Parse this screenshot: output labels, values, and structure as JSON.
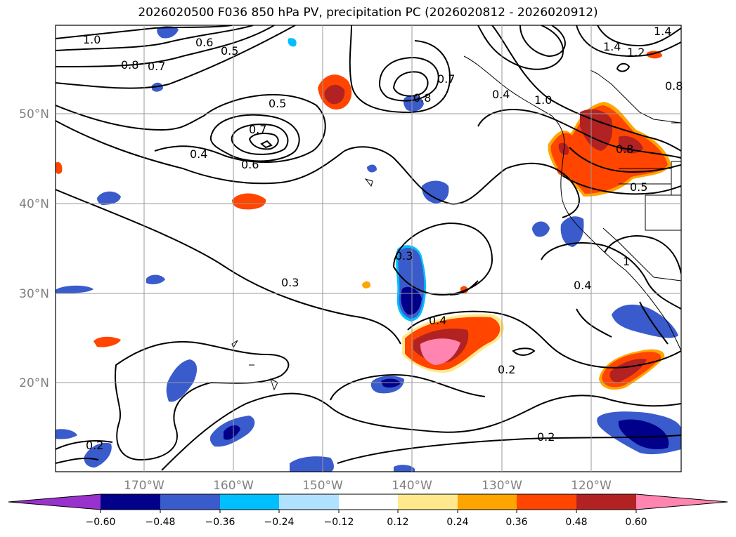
{
  "title": "2026020500 F036 850 hPa PV, precipitation PC (2026020812 - 2026020912)",
  "lat_ticks": [
    "50°N",
    "40°N",
    "30°N",
    "20°N"
  ],
  "lon_ticks": [
    "170°W",
    "160°W",
    "150°W",
    "140°W",
    "130°W",
    "120°W"
  ],
  "colorbar": {
    "ticks": [
      "−0.60",
      "−0.48",
      "−0.36",
      "−0.24",
      "−0.12",
      "0.12",
      "0.24",
      "0.36",
      "0.48",
      "0.60"
    ],
    "colors": [
      "#9932cc",
      "#00008b",
      "#3a5bcc",
      "#00bfff",
      "#b0e2ff",
      "#ffffff",
      "#ffe98c",
      "#ffa500",
      "#ff4500",
      "#b22222",
      "#ff85b0"
    ]
  },
  "contour_labels": [
    "1.0",
    "0.8",
    "0.7",
    "0.6",
    "0.5",
    "0.4",
    "0.7",
    "0.8",
    "0.5",
    "0.7",
    "0.6",
    "0.4",
    "1.0",
    "1.4",
    "1.2",
    "1.4",
    "0.8",
    "0.8",
    "0.5",
    "0.3",
    "0.3",
    "0.4",
    "0.4",
    "0.2",
    "0.2",
    "0.2",
    "1"
  ]
}
